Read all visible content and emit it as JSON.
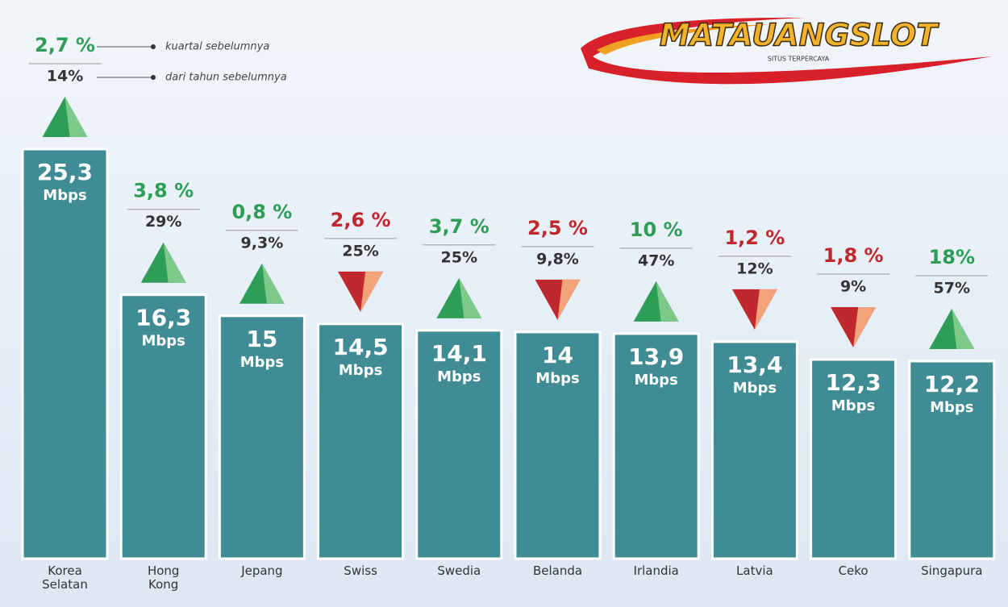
{
  "chart_data": {
    "type": "bar",
    "logo": "MATAUANGSLOT",
    "logo_tagline": "SITUS TERPERCAYA",
    "legend": {
      "change_quarter": "kuartal sebelumnya",
      "change_year": "dari tahun sebelumnya"
    },
    "unit": "Mbps",
    "categories": [
      "Korea Selatan",
      "Hong Kong",
      "Jepang",
      "Swiss",
      "Swedia",
      "Belanda",
      "Irlandia",
      "Latvia",
      "Ceko",
      "Singapura"
    ],
    "values": [
      25.3,
      16.3,
      15,
      14.5,
      14.1,
      14,
      13.9,
      13.4,
      12.3,
      12.2
    ],
    "value_labels": [
      "25,3",
      "16,3",
      "15",
      "14,5",
      "14,1",
      "14",
      "13,9",
      "13,4",
      "12,3",
      "12,2"
    ],
    "color": "#3f8c94",
    "change_quarter": {
      "values": [
        2.7,
        3.8,
        0.8,
        2.6,
        3.7,
        2.5,
        10,
        1.2,
        1.8,
        18
      ],
      "value_labels": [
        "2,7 %",
        "3,8 %",
        "0,8 %",
        "2,6 %",
        "3,7 %",
        "2,5 %",
        "10 %",
        "1,2 %",
        "1,8 %",
        "18%"
      ]
    },
    "change_year": {
      "values": [
        14,
        29,
        9.3,
        25,
        25,
        9.8,
        47,
        12,
        9,
        57
      ],
      "value_labels": [
        "14%",
        "29%",
        "9,3%",
        "25%",
        "25%",
        "9,8%",
        "47%",
        "12%",
        "9%",
        "57%"
      ]
    },
    "direction": [
      "up",
      "up",
      "up",
      "down",
      "up",
      "down",
      "up",
      "down",
      "down",
      "up"
    ],
    "up_color": "#2e9e57",
    "down_color": "#c0282d"
  }
}
